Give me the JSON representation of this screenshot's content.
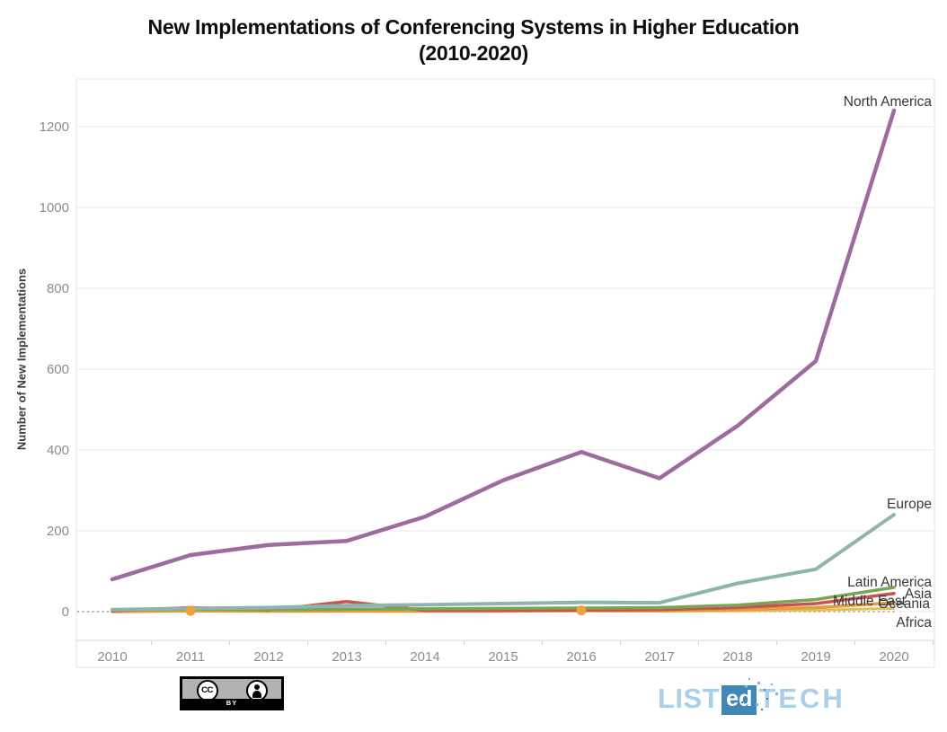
{
  "title": {
    "line1": "New Implementations of Conferencing Systems in Higher Education",
    "line2": "(2010-2020)"
  },
  "chart_data": {
    "type": "line",
    "title": "New Implementations of Conferencing Systems in Higher Education (2010-2020)",
    "ylabel": "Number of New Implementations",
    "xlabel": "",
    "x": [
      2010,
      2011,
      2012,
      2013,
      2014,
      2015,
      2016,
      2017,
      2018,
      2019,
      2020
    ],
    "ylim": [
      0,
      1300
    ],
    "yticks": [
      0,
      200,
      400,
      600,
      800,
      1000,
      1200
    ],
    "grid": true,
    "legend": "end-of-line-labels",
    "series": [
      {
        "name": "North America",
        "color": "#9e6b9e",
        "width": 4.5,
        "values": [
          80,
          140,
          165,
          175,
          235,
          325,
          395,
          330,
          460,
          620,
          1240
        ],
        "label": {
          "x": 1037,
          "y": 118
        }
      },
      {
        "name": "Europe",
        "color": "#8cb5ad",
        "width": 4,
        "values": [
          5,
          8,
          10,
          15,
          17,
          20,
          23,
          22,
          70,
          105,
          240
        ],
        "label": {
          "x": 1037,
          "y": 566
        }
      },
      {
        "name": "Latin America",
        "color": "#7aa456",
        "width": 3.5,
        "values": [
          4,
          6,
          5,
          6,
          7,
          8,
          9,
          10,
          16,
          30,
          60
        ],
        "label": {
          "x": 1037,
          "y": 653
        }
      },
      {
        "name": "Asia",
        "color": "#c9534f",
        "width": 3.5,
        "values": [
          2,
          10,
          4,
          25,
          3,
          3,
          4,
          5,
          10,
          20,
          45
        ],
        "label": {
          "x": 1037,
          "y": 666
        }
      },
      {
        "name": "Middle East",
        "color": "#e59c3c",
        "width": 3.5,
        "values": [
          0,
          2,
          1,
          1,
          1,
          1,
          3,
          2,
          5,
          10,
          22
        ],
        "markers": [
          2011,
          2016
        ],
        "marker_color": "#efa23b",
        "label": {
          "x": 1008,
          "y": 674
        }
      },
      {
        "name": "Oceania",
        "color": "#e0c253",
        "width": 3,
        "values": [
          1,
          1,
          1,
          2,
          1,
          1,
          1,
          1,
          2,
          4,
          8
        ],
        "label": {
          "x": 1035,
          "y": 677
        }
      },
      {
        "name": "Africa",
        "color": "#a0a0a0",
        "width": 1.6,
        "dash": "2 3.5",
        "extend_full": true,
        "values": [
          0,
          0,
          0,
          0,
          0,
          0,
          0,
          0,
          0,
          1,
          2
        ],
        "label": {
          "x": 1037,
          "y": 698
        }
      }
    ]
  },
  "footer": {
    "license_badge": {
      "cc_text": "CC",
      "by_text": "BY"
    },
    "brand": {
      "list": "LIST",
      "ed": "ed",
      "tech": "TECH"
    }
  }
}
